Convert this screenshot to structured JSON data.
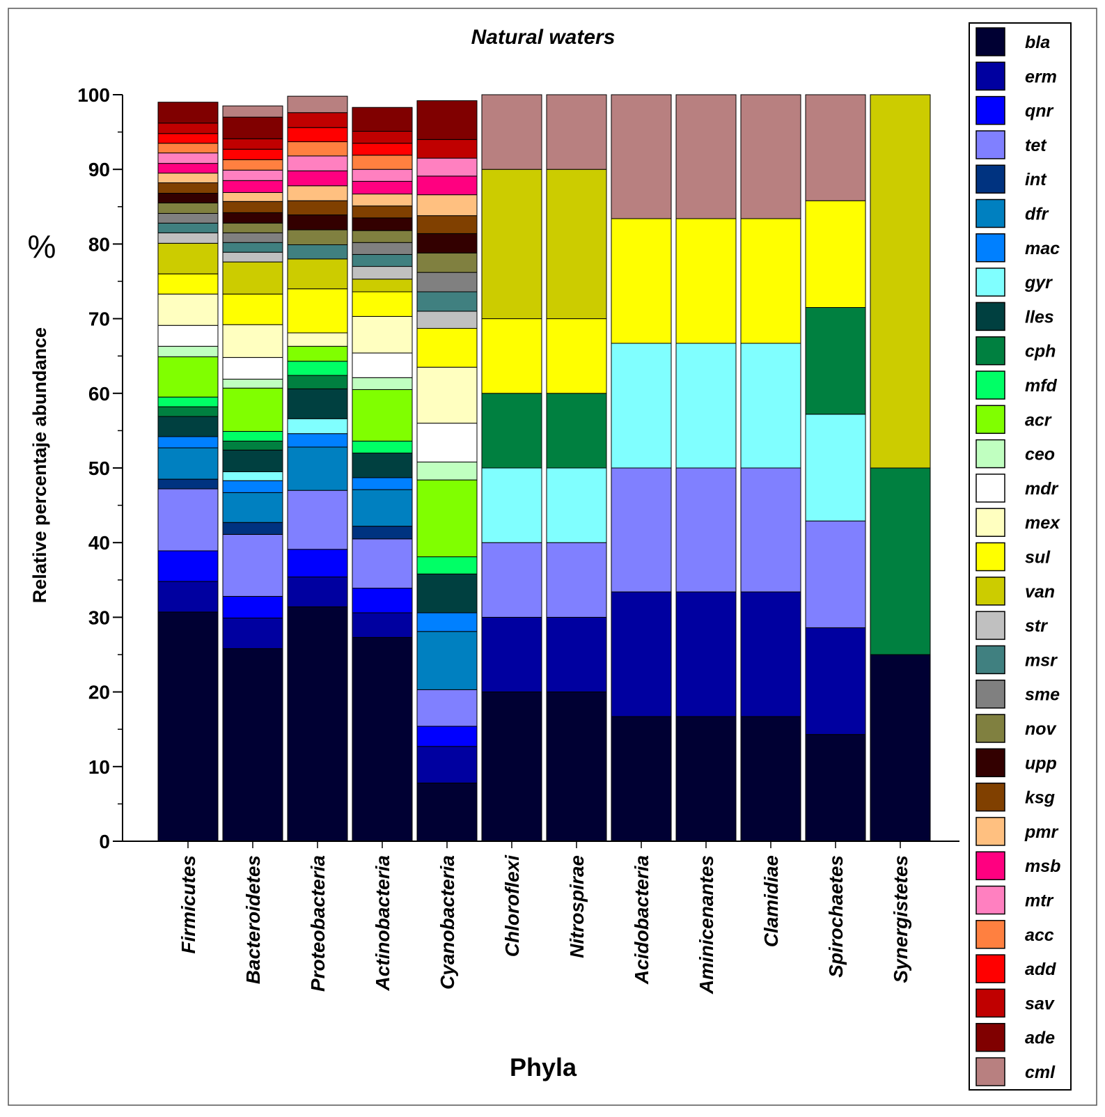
{
  "chart_data": {
    "type": "bar",
    "stacked": true,
    "title": "Natural waters",
    "xlabel": "Phyla",
    "ylabel": "Relative percentaje abundance",
    "ylabel_unit": "%",
    "ylim": [
      0,
      100
    ],
    "yticks": [
      0,
      10,
      20,
      30,
      40,
      50,
      60,
      70,
      80,
      90,
      100
    ],
    "legend_position": "right",
    "categories": [
      "Firmicutes",
      "Bacteroidetes",
      "Proteobacteria",
      "Actinobacteria",
      "Cyanobacteria",
      "Chloroflexi",
      "Nitrospirae",
      "Acidobacteria",
      "Aminicenantes",
      "Clamidiae",
      "Spirochaetes",
      "Synergistetes"
    ],
    "series": [
      {
        "name": "bla",
        "color": "#000033",
        "values": [
          30.7,
          25.8,
          31.4,
          27.3,
          7.8,
          20,
          20,
          16.7,
          16.7,
          16.7,
          14.3,
          25
        ]
      },
      {
        "name": "erm",
        "color": "#0000A0",
        "values": [
          4.1,
          4.1,
          4,
          3.3,
          4.9,
          10,
          10,
          16.7,
          16.7,
          16.7,
          14.3,
          0
        ]
      },
      {
        "name": "qnr",
        "color": "#0000FF",
        "values": [
          4.1,
          2.9,
          3.7,
          3.3,
          2.7,
          0,
          0,
          0,
          0,
          0,
          0,
          0
        ]
      },
      {
        "name": "tet",
        "color": "#8080FF",
        "values": [
          8.3,
          8.3,
          7.9,
          6.6,
          4.9,
          10,
          10,
          16.6,
          16.6,
          16.6,
          14.3,
          0
        ]
      },
      {
        "name": "int",
        "color": "#003380",
        "values": [
          1.3,
          1.6,
          0,
          1.7,
          0,
          0,
          0,
          0,
          0,
          0,
          0,
          0
        ]
      },
      {
        "name": "dfr",
        "color": "#0080C0",
        "values": [
          4.2,
          4,
          5.8,
          4.9,
          7.8,
          0,
          0,
          0,
          0,
          0,
          0,
          0
        ]
      },
      {
        "name": "mac",
        "color": "#0080FF",
        "values": [
          1.5,
          1.6,
          1.8,
          1.6,
          2.5,
          0,
          0,
          0,
          0,
          0,
          0,
          0
        ]
      },
      {
        "name": "gyr",
        "color": "#80FFFF",
        "values": [
          0,
          1.2,
          2,
          0,
          0,
          10,
          10,
          16.7,
          16.7,
          16.7,
          14.3,
          0
        ]
      },
      {
        "name": "lles",
        "color": "#004040",
        "values": [
          2.7,
          2.9,
          4,
          3.3,
          5.2,
          0,
          0,
          0,
          0,
          0,
          0,
          0
        ]
      },
      {
        "name": "cph",
        "color": "#008040",
        "values": [
          1.3,
          1.2,
          1.8,
          0,
          0,
          10,
          10,
          0,
          0,
          0,
          14.3,
          25
        ]
      },
      {
        "name": "mfd",
        "color": "#00FF66",
        "values": [
          1.3,
          1.3,
          1.9,
          1.6,
          2.3,
          0,
          0,
          0,
          0,
          0,
          0,
          0
        ]
      },
      {
        "name": "acr",
        "color": "#80FF00",
        "values": [
          5.4,
          5.8,
          2,
          6.9,
          10.3,
          0,
          0,
          0,
          0,
          0,
          0,
          0
        ]
      },
      {
        "name": "ceo",
        "color": "#C0FFC0",
        "values": [
          1.4,
          1.2,
          0,
          1.6,
          2.4,
          0,
          0,
          0,
          0,
          0,
          0,
          0
        ]
      },
      {
        "name": "mdr",
        "color": "#FFFFFF",
        "values": [
          2.8,
          2.9,
          0,
          3.3,
          5.2,
          0,
          0,
          0,
          0,
          0,
          0,
          0
        ]
      },
      {
        "name": "mex",
        "color": "#FFFFC0",
        "values": [
          4.2,
          4.4,
          1.8,
          4.9,
          7.5,
          0,
          0,
          0,
          0,
          0,
          0,
          0
        ]
      },
      {
        "name": "sul",
        "color": "#FFFF00",
        "values": [
          2.7,
          4.1,
          5.9,
          3.3,
          5.2,
          10,
          10,
          16.7,
          16.7,
          16.7,
          14.3,
          0
        ]
      },
      {
        "name": "van",
        "color": "#CCCC00",
        "values": [
          4.1,
          4.3,
          4,
          1.7,
          0,
          20,
          20,
          0,
          0,
          0,
          0,
          50
        ]
      },
      {
        "name": "str",
        "color": "#C0C0C0",
        "values": [
          1.4,
          1.3,
          0,
          1.7,
          2.3,
          0,
          0,
          0,
          0,
          0,
          0,
          0
        ]
      },
      {
        "name": "msr",
        "color": "#408080",
        "values": [
          1.3,
          1.3,
          1.9,
          1.6,
          2.6,
          0,
          0,
          0,
          0,
          0,
          0,
          0
        ]
      },
      {
        "name": "sme",
        "color": "#808080",
        "values": [
          1.3,
          1.3,
          0,
          1.6,
          2.6,
          0,
          0,
          0,
          0,
          0,
          0,
          0
        ]
      },
      {
        "name": "nov",
        "color": "#808040",
        "values": [
          1.4,
          1.3,
          2,
          1.6,
          2.6,
          0,
          0,
          0,
          0,
          0,
          0,
          0
        ]
      },
      {
        "name": "upp",
        "color": "#330000",
        "values": [
          1.3,
          1.4,
          2,
          1.7,
          2.6,
          0,
          0,
          0,
          0,
          0,
          0,
          0
        ]
      },
      {
        "name": "ksg",
        "color": "#804000",
        "values": [
          1.4,
          1.5,
          1.9,
          1.6,
          2.4,
          0,
          0,
          0,
          0,
          0,
          0,
          0
        ]
      },
      {
        "name": "pmr",
        "color": "#FFC080",
        "values": [
          1.3,
          1.2,
          2,
          1.6,
          2.8,
          0,
          0,
          0,
          0,
          0,
          0,
          0
        ]
      },
      {
        "name": "msb",
        "color": "#FF0080",
        "values": [
          1.3,
          1.6,
          2,
          1.7,
          2.5,
          0,
          0,
          0,
          0,
          0,
          0,
          0
        ]
      },
      {
        "name": "mtr",
        "color": "#FF80C0",
        "values": [
          1.4,
          1.4,
          2,
          1.6,
          2.4,
          0,
          0,
          0,
          0,
          0,
          0,
          0
        ]
      },
      {
        "name": "acc",
        "color": "#FF8040",
        "values": [
          1.3,
          1.4,
          1.9,
          1.9,
          0,
          0,
          0,
          0,
          0,
          0,
          0,
          0
        ]
      },
      {
        "name": "add",
        "color": "#FF0000",
        "values": [
          1.3,
          1.4,
          1.9,
          1.6,
          0,
          0,
          0,
          0,
          0,
          0,
          0,
          0
        ]
      },
      {
        "name": "sav",
        "color": "#C00000",
        "values": [
          1.4,
          1.4,
          2,
          1.6,
          2.5,
          0,
          0,
          0,
          0,
          0,
          0,
          0
        ]
      },
      {
        "name": "ade",
        "color": "#800000",
        "values": [
          2.8,
          2.9,
          0,
          3.2,
          5.2,
          0,
          0,
          0,
          0,
          0,
          0,
          0
        ]
      },
      {
        "name": "cml",
        "color": "#B88080",
        "values": [
          0,
          1.5,
          2.2,
          0,
          0,
          10,
          10,
          16.6,
          16.6,
          16.6,
          14.2,
          0
        ]
      }
    ]
  }
}
